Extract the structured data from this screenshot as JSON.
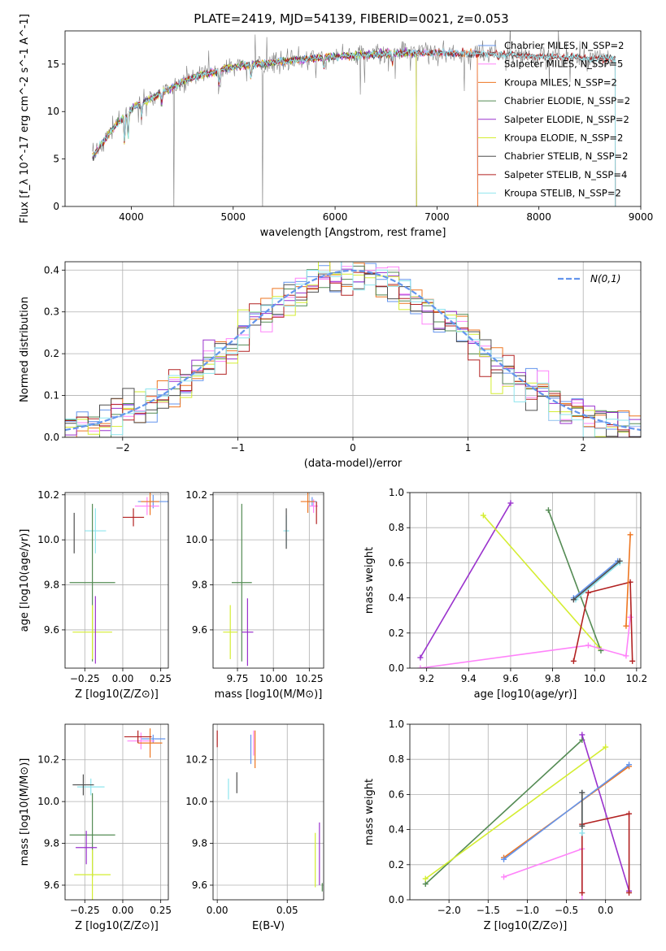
{
  "figure_title": "PLATE=2419, MJD=54139, FIBERID=0021, z=0.053",
  "chart_data": [
    {
      "id": "spectrum",
      "type": "line",
      "title": "PLATE=2419, MJD=54139, FIBERID=0021, z=0.053",
      "xlabel": "wavelength [Angstrom, rest frame]",
      "ylabel": "Flux [f_λ 10^-17 erg cm^-2 s^-1 A^-1]",
      "xlim": [
        3350,
        9000
      ],
      "ylim": [
        0,
        18.5
      ],
      "xticks": [
        4000,
        5000,
        6000,
        7000,
        8000,
        9000
      ],
      "yticks": [
        0,
        5,
        10,
        15
      ],
      "grid": false,
      "legend_position": "top-right",
      "wavelength_range": [
        3620,
        8750
      ],
      "continuum_anchors": [
        [
          3620,
          5.2
        ],
        [
          3800,
          8.0
        ],
        [
          4000,
          10.3
        ],
        [
          4300,
          12.0
        ],
        [
          4600,
          13.6
        ],
        [
          5000,
          14.7
        ],
        [
          5500,
          15.3
        ],
        [
          6000,
          15.8
        ],
        [
          6500,
          16.1
        ],
        [
          7000,
          16.2
        ],
        [
          7500,
          16.1
        ],
        [
          8000,
          15.8
        ],
        [
          8750,
          15.6
        ]
      ],
      "series": [
        {
          "name": "Chabrier MILES, N_SSP=2",
          "color": "#6495ed",
          "end": 7400
        },
        {
          "name": "Salpeter MILES, N_SSP=5",
          "color": "#ff83fa",
          "end": 7400
        },
        {
          "name": "Kroupa MILES, N_SSP=2",
          "color": "#ee7621",
          "end": 7400
        },
        {
          "name": "Chabrier ELODIE, N_SSP=2",
          "color": "#548b54",
          "end": 6800
        },
        {
          "name": "Salpeter ELODIE, N_SSP=2",
          "color": "#9a32cd",
          "end": 6800
        },
        {
          "name": "Kroupa ELODIE, N_SSP=2",
          "color": "#d4ed31",
          "end": 6800
        },
        {
          "name": "Chabrier STELIB, N_SSP=2",
          "color": "#4f4f4f",
          "end": 8750
        },
        {
          "name": "Salpeter STELIB, N_SSP=4",
          "color": "#b22222",
          "end": 8750
        },
        {
          "name": "Kroupa STELIB, N_SSP=2",
          "color": "#8ee5ee",
          "end": 8750
        }
      ],
      "observed": {
        "name": "data",
        "color": "#808080"
      }
    },
    {
      "id": "residuals",
      "type": "line",
      "xlabel": "(data-model)/error",
      "ylabel": "Normed distribution",
      "xlim": [
        -2.5,
        2.5
      ],
      "ylim": [
        0,
        0.42
      ],
      "xticks": [
        -2,
        -1,
        0,
        1,
        2
      ],
      "yticks": [
        0.0,
        0.1,
        0.2,
        0.3,
        0.4
      ],
      "grid": true,
      "legend_position": "top-right",
      "reference": {
        "name": "N(0,1)",
        "color": "#6495ed",
        "mean": 0,
        "sigma": 1
      },
      "bin_width": 0.1,
      "series_colors": [
        "#6495ed",
        "#ff83fa",
        "#ee7621",
        "#548b54",
        "#9a32cd",
        "#d4ed31",
        "#4f4f4f",
        "#b22222",
        "#8ee5ee"
      ]
    },
    {
      "id": "age_vs_Z",
      "type": "scatter",
      "xlabel": "Z [log10(Z/Z⊙)]",
      "ylabel": "age [log10(age/yr)]",
      "xlim": [
        -0.38,
        0.3
      ],
      "ylim": [
        9.43,
        10.21
      ],
      "xticks": [
        -0.25,
        0.0,
        0.25
      ],
      "yticks": [
        9.6,
        9.8,
        10.0,
        10.2
      ],
      "grid": true,
      "points": [
        {
          "color": "#6495ed",
          "x": 0.2,
          "y": 10.17,
          "xerr": 0.1,
          "yerr": 0.03
        },
        {
          "color": "#ff83fa",
          "x": 0.16,
          "y": 10.15,
          "xerr": 0.08,
          "yerr": 0.04
        },
        {
          "color": "#ee7621",
          "x": 0.18,
          "y": 10.17,
          "xerr": 0.06,
          "yerr": 0.06
        },
        {
          "color": "#b22222",
          "x": 0.07,
          "y": 10.1,
          "xerr": 0.07,
          "yerr": 0.04
        },
        {
          "color": "#8ee5ee",
          "x": -0.18,
          "y": 10.04,
          "xerr": 0.07,
          "yerr": 0.1
        },
        {
          "color": "#4f4f4f",
          "x": -0.32,
          "y": 10.03,
          "xerr": 0.0,
          "yerr": 0.09
        },
        {
          "color": "#548b54",
          "x": -0.2,
          "y": 9.81,
          "xerr": 0.15,
          "yerr": 0.35
        },
        {
          "color": "#d4ed31",
          "x": -0.2,
          "y": 9.59,
          "xerr": 0.13,
          "yerr": 0.12
        },
        {
          "color": "#9a32cd",
          "x": -0.18,
          "y": 9.6,
          "xerr": 0.0,
          "yerr": 0.15
        }
      ]
    },
    {
      "id": "age_vs_mass",
      "type": "scatter",
      "xlabel": "mass [log10(M/M⊙)]",
      "ylabel": "",
      "xlim": [
        9.58,
        10.35
      ],
      "ylim": [
        9.43,
        10.21
      ],
      "xticks": [
        9.75,
        10.0,
        10.25
      ],
      "yticks": [
        9.6,
        9.8,
        10.0,
        10.2
      ],
      "grid": true,
      "points": [
        {
          "color": "#6495ed",
          "x": 10.27,
          "y": 10.17,
          "xerr": 0.03,
          "yerr": 0.02
        },
        {
          "color": "#ff83fa",
          "x": 10.28,
          "y": 10.15,
          "xerr": 0.03,
          "yerr": 0.03
        },
        {
          "color": "#ee7621",
          "x": 10.24,
          "y": 10.17,
          "xerr": 0.05,
          "yerr": 0.05
        },
        {
          "color": "#b22222",
          "x": 10.3,
          "y": 10.12,
          "xerr": 0.0,
          "yerr": 0.05
        },
        {
          "color": "#8ee5ee",
          "x": 10.09,
          "y": 10.04,
          "xerr": 0.02,
          "yerr": 0.07
        },
        {
          "color": "#4f4f4f",
          "x": 10.09,
          "y": 10.05,
          "xerr": 0.0,
          "yerr": 0.09
        },
        {
          "color": "#548b54",
          "x": 9.78,
          "y": 9.81,
          "xerr": 0.07,
          "yerr": 0.35
        },
        {
          "color": "#d4ed31",
          "x": 9.7,
          "y": 9.59,
          "xerr": 0.05,
          "yerr": 0.12
        },
        {
          "color": "#9a32cd",
          "x": 9.82,
          "y": 9.59,
          "xerr": 0.04,
          "yerr": 0.15
        }
      ]
    },
    {
      "id": "weight_vs_age",
      "type": "line",
      "xlabel": "age [log10(age/yr)]",
      "ylabel": "mass weight",
      "xlim": [
        9.12,
        10.22
      ],
      "ylim": [
        0,
        1.0
      ],
      "xticks": [
        9.2,
        9.4,
        9.6,
        9.8,
        10.0,
        10.2
      ],
      "yticks": [
        0.0,
        0.2,
        0.4,
        0.6,
        0.8,
        1.0
      ],
      "grid": true,
      "series": [
        {
          "color": "#9a32cd",
          "x": [
            9.17,
            9.6
          ],
          "y": [
            0.06,
            0.94
          ]
        },
        {
          "color": "#d4ed31",
          "x": [
            9.47,
            10.02
          ],
          "y": [
            0.87,
            0.12
          ]
        },
        {
          "color": "#548b54",
          "x": [
            9.78,
            10.03
          ],
          "y": [
            0.9,
            0.1
          ]
        },
        {
          "color": "#ff83fa",
          "x": [
            9.17,
            9.97,
            10.15,
            10.17
          ],
          "y": [
            0.0,
            0.13,
            0.07,
            0.29
          ]
        },
        {
          "color": "#b22222",
          "x": [
            9.9,
            9.97,
            10.17,
            10.18
          ],
          "y": [
            0.04,
            0.43,
            0.49,
            0.04
          ]
        },
        {
          "color": "#6495ed",
          "x": [
            9.9,
            10.11
          ],
          "y": [
            0.4,
            0.61
          ]
        },
        {
          "color": "#8ee5ee",
          "x": [
            9.91,
            10.12
          ],
          "y": [
            0.39,
            0.6
          ]
        },
        {
          "color": "#ee7621",
          "x": [
            10.15,
            10.17
          ],
          "y": [
            0.24,
            0.76
          ]
        },
        {
          "color": "#4f4f4f",
          "x": [
            9.9,
            10.12
          ],
          "y": [
            0.39,
            0.61
          ]
        }
      ]
    },
    {
      "id": "mass_vs_Z",
      "type": "scatter",
      "xlabel": "Z [log10(Z/Z⊙)]",
      "ylabel": "mass [log10(M/M⊙)]",
      "xlim": [
        -0.38,
        0.3
      ],
      "ylim": [
        9.53,
        10.37
      ],
      "xticks": [
        -0.25,
        0.0,
        0.25
      ],
      "yticks": [
        9.6,
        9.8,
        10.0,
        10.2
      ],
      "grid": true,
      "points": [
        {
          "color": "#6495ed",
          "x": 0.2,
          "y": 10.3,
          "xerr": 0.08,
          "yerr": 0.02
        },
        {
          "color": "#ff83fa",
          "x": 0.12,
          "y": 10.29,
          "xerr": 0.09,
          "yerr": 0.04
        },
        {
          "color": "#ee7621",
          "x": 0.18,
          "y": 10.28,
          "xerr": 0.08,
          "yerr": 0.07
        },
        {
          "color": "#b22222",
          "x": 0.1,
          "y": 10.31,
          "xerr": 0.09,
          "yerr": 0.03
        },
        {
          "color": "#8ee5ee",
          "x": -0.21,
          "y": 10.07,
          "xerr": 0.09,
          "yerr": 0.04
        },
        {
          "color": "#4f4f4f",
          "x": -0.26,
          "y": 10.08,
          "xerr": 0.07,
          "yerr": 0.05
        },
        {
          "color": "#548b54",
          "x": -0.2,
          "y": 9.84,
          "xerr": 0.15,
          "yerr": 0.2
        },
        {
          "color": "#d4ed31",
          "x": -0.2,
          "y": 9.65,
          "xerr": 0.12,
          "yerr": 0.12
        },
        {
          "color": "#9a32cd",
          "x": -0.24,
          "y": 9.78,
          "xerr": 0.07,
          "yerr": 0.08
        }
      ]
    },
    {
      "id": "mass_vs_EBV",
      "type": "scatter",
      "xlabel": "E(B-V)",
      "ylabel": "",
      "xlim": [
        -0.003,
        0.076
      ],
      "ylim": [
        9.53,
        10.37
      ],
      "xticks": [
        0.0,
        0.05
      ],
      "yticks": [
        9.6,
        9.8,
        10.0,
        10.2
      ],
      "grid": true,
      "points": [
        {
          "color": "#b22222",
          "x": 0.0,
          "y": 10.3,
          "xerr": 0,
          "yerr": 0.04
        },
        {
          "color": "#6495ed",
          "x": 0.024,
          "y": 10.25,
          "xerr": 0,
          "yerr": 0.07
        },
        {
          "color": "#ee7621",
          "x": 0.027,
          "y": 10.25,
          "xerr": 0,
          "yerr": 0.09
        },
        {
          "color": "#ff83fa",
          "x": 0.026,
          "y": 10.28,
          "xerr": 0,
          "yerr": 0.06
        },
        {
          "color": "#8ee5ee",
          "x": 0.008,
          "y": 10.06,
          "xerr": 0,
          "yerr": 0.05
        },
        {
          "color": "#4f4f4f",
          "x": 0.014,
          "y": 10.09,
          "xerr": 0,
          "yerr": 0.05
        },
        {
          "color": "#d4ed31",
          "x": 0.07,
          "y": 9.72,
          "xerr": 0,
          "yerr": 0.13
        },
        {
          "color": "#9a32cd",
          "x": 0.073,
          "y": 9.75,
          "xerr": 0,
          "yerr": 0.15
        },
        {
          "color": "#548b54",
          "x": 0.075,
          "y": 9.59,
          "xerr": 0,
          "yerr": 0.02
        }
      ]
    },
    {
      "id": "weight_vs_Z",
      "type": "line",
      "xlabel": "Z [log10(Z/Z⊙)]",
      "ylabel": "mass weight",
      "xlim": [
        -2.5,
        0.45
      ],
      "ylim": [
        0,
        1.0
      ],
      "xticks": [
        -2.0,
        -1.5,
        -1.0,
        -0.5,
        0.0
      ],
      "yticks": [
        0.0,
        0.2,
        0.4,
        0.6,
        0.8,
        1.0
      ],
      "grid": true,
      "series": [
        {
          "color": "#548b54",
          "x": [
            -2.3,
            -0.3
          ],
          "y": [
            0.09,
            0.91
          ]
        },
        {
          "color": "#d4ed31",
          "x": [
            -2.3,
            0.0
          ],
          "y": [
            0.12,
            0.87
          ]
        },
        {
          "color": "#9a32cd",
          "x": [
            -0.3,
            0.3
          ],
          "y": [
            0.94,
            0.05
          ]
        },
        {
          "color": "#ee7621",
          "x": [
            -1.3,
            0.3
          ],
          "y": [
            0.24,
            0.76
          ]
        },
        {
          "color": "#6495ed",
          "x": [
            -1.3,
            0.3
          ],
          "y": [
            0.23,
            0.77
          ]
        },
        {
          "color": "#ff83fa",
          "x": [
            -1.3,
            -0.3,
            -0.3
          ],
          "y": [
            0.13,
            0.29,
            0.0
          ]
        },
        {
          "color": "#b22222",
          "x": [
            -0.3,
            -0.3,
            0.3,
            0.3
          ],
          "y": [
            0.04,
            0.43,
            0.49,
            0.04
          ]
        },
        {
          "color": "#8ee5ee",
          "x": [
            -0.3,
            -0.3
          ],
          "y": [
            0.38,
            0.61
          ]
        },
        {
          "color": "#4f4f4f",
          "x": [
            -0.3,
            -0.3
          ],
          "y": [
            0.42,
            0.61
          ]
        }
      ]
    }
  ]
}
